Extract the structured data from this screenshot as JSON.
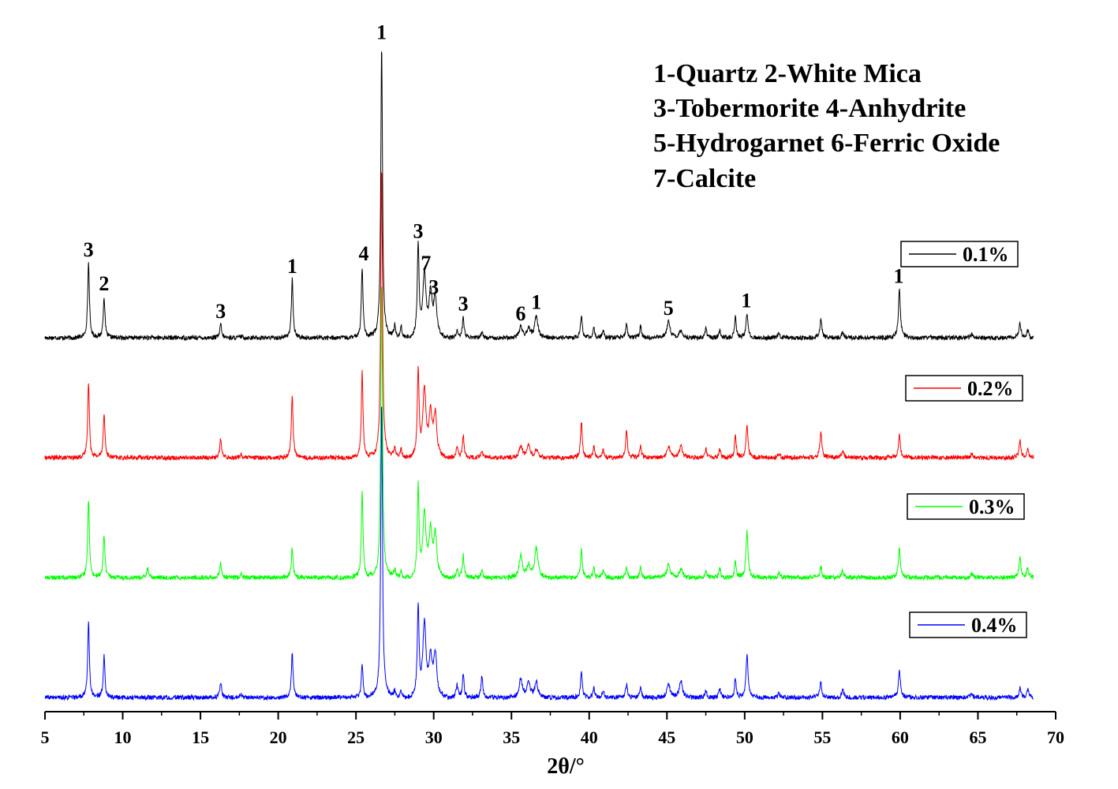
{
  "chart_data": {
    "type": "line",
    "xlabel": "2θ/°",
    "ylabel": "",
    "xlim": [
      5,
      70
    ],
    "x_ticks": [
      "5",
      "10",
      "15",
      "20",
      "25",
      "30",
      "35",
      "40",
      "45",
      "50",
      "55",
      "60",
      "65",
      "70"
    ],
    "phase_key": [
      "1-Quartz   2-White Mica",
      "3-Tobermorite   4-Anhydrite",
      "5-Hydrogarnet  6-Ferric Oxide",
      "7-Calcite"
    ],
    "peak_labels": [
      {
        "text": "3",
        "x": 7.8
      },
      {
        "text": "2",
        "x": 8.8
      },
      {
        "text": "3",
        "x": 16.3
      },
      {
        "text": "1",
        "x": 20.9
      },
      {
        "text": "4",
        "x": 25.5
      },
      {
        "text": "1",
        "x": 26.65
      },
      {
        "text": "3",
        "x": 29.0
      },
      {
        "text": "7",
        "x": 29.5
      },
      {
        "text": "3",
        "x": 30.0
      },
      {
        "text": "3",
        "x": 31.9
      },
      {
        "text": "6",
        "x": 35.6
      },
      {
        "text": "1",
        "x": 36.6
      },
      {
        "text": "5",
        "x": 45.1
      },
      {
        "text": "1",
        "x": 50.1
      },
      {
        "text": "1",
        "x": 59.9
      }
    ],
    "peak_positions": [
      7.8,
      8.8,
      11.6,
      16.3,
      17.6,
      20.9,
      25.4,
      26.65,
      27.5,
      27.9,
      29.0,
      29.4,
      29.8,
      30.1,
      31.5,
      31.9,
      33.1,
      35.6,
      36.1,
      36.6,
      39.5,
      40.3,
      40.9,
      42.4,
      43.3,
      45.1,
      45.9,
      47.5,
      48.4,
      49.4,
      50.15,
      52.2,
      54.9,
      56.3,
      59.95,
      64.6,
      67.7,
      68.2
    ],
    "series": [
      {
        "name": "0.1%",
        "color": "#000000",
        "intensities": [
          1.0,
          0.55,
          0.0,
          0.18,
          0.02,
          0.78,
          0.95,
          3.9,
          0.18,
          0.16,
          1.25,
          0.82,
          0.55,
          0.5,
          0.1,
          0.28,
          0.08,
          0.15,
          0.12,
          0.3,
          0.3,
          0.12,
          0.1,
          0.18,
          0.16,
          0.22,
          0.1,
          0.12,
          0.1,
          0.28,
          0.32,
          0.06,
          0.25,
          0.08,
          0.65,
          0.05,
          0.2,
          0.1
        ]
      },
      {
        "name": "0.2%",
        "color": "#ff0000",
        "intensities": [
          1.0,
          0.6,
          0.0,
          0.25,
          0.05,
          0.85,
          1.15,
          3.9,
          0.15,
          0.12,
          1.15,
          0.88,
          0.55,
          0.55,
          0.15,
          0.3,
          0.1,
          0.15,
          0.15,
          0.1,
          0.48,
          0.14,
          0.1,
          0.38,
          0.16,
          0.15,
          0.15,
          0.12,
          0.12,
          0.3,
          0.42,
          0.06,
          0.35,
          0.1,
          0.3,
          0.05,
          0.22,
          0.12
        ]
      },
      {
        "name": "0.3%",
        "color": "#00ff00",
        "intensities": [
          1.05,
          0.58,
          0.12,
          0.2,
          0.05,
          0.4,
          1.15,
          3.95,
          0.12,
          0.1,
          1.2,
          0.82,
          0.58,
          0.55,
          0.12,
          0.3,
          0.1,
          0.3,
          0.15,
          0.4,
          0.38,
          0.12,
          0.1,
          0.14,
          0.14,
          0.18,
          0.12,
          0.1,
          0.12,
          0.22,
          0.62,
          0.06,
          0.14,
          0.1,
          0.4,
          0.05,
          0.26,
          0.12
        ]
      },
      {
        "name": "0.4%",
        "color": "#0000ff",
        "intensities": [
          1.0,
          0.55,
          0.0,
          0.2,
          0.04,
          0.6,
          0.45,
          3.95,
          0.1,
          0.1,
          1.2,
          0.95,
          0.5,
          0.55,
          0.18,
          0.3,
          0.3,
          0.25,
          0.2,
          0.2,
          0.35,
          0.12,
          0.1,
          0.18,
          0.14,
          0.18,
          0.22,
          0.1,
          0.12,
          0.25,
          0.58,
          0.06,
          0.2,
          0.12,
          0.38,
          0.05,
          0.12,
          0.1
        ]
      }
    ],
    "legend": "right, beside each trace",
    "grid": false
  }
}
